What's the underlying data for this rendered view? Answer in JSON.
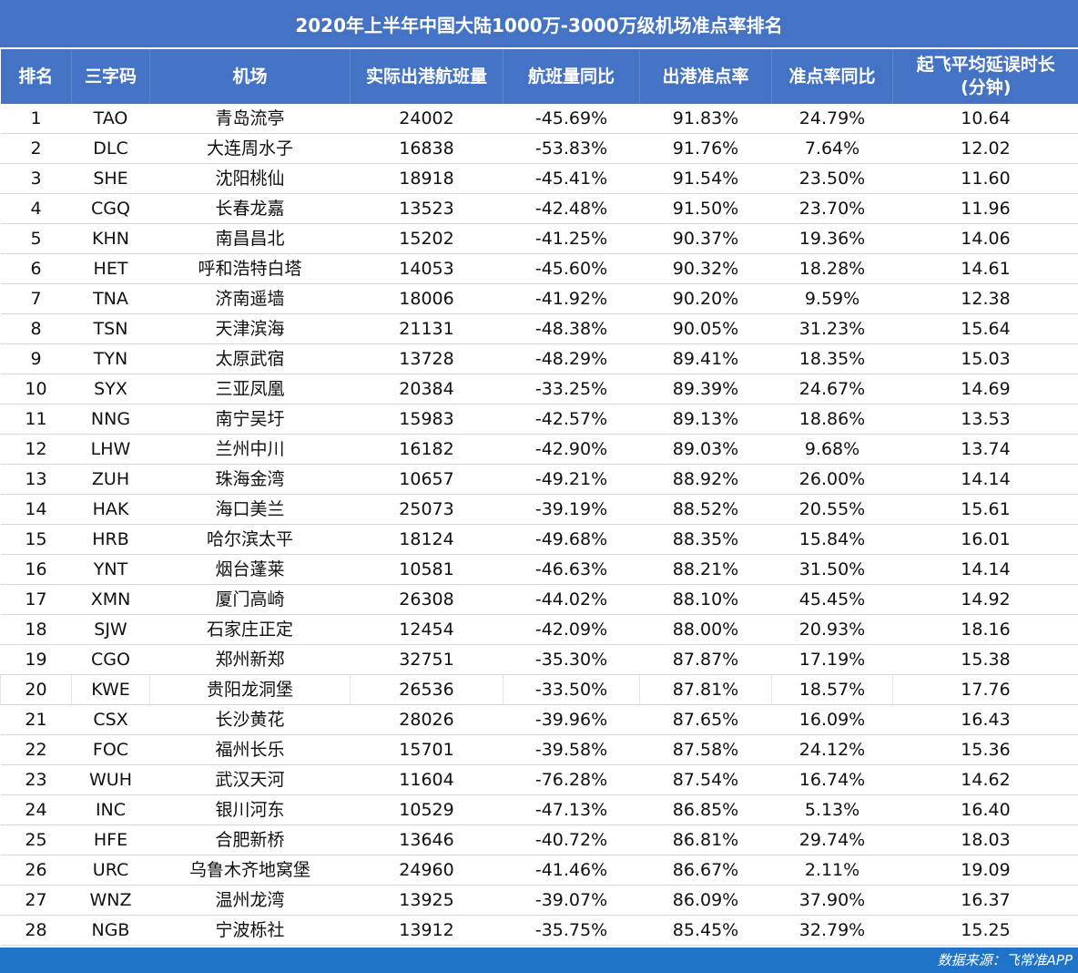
{
  "title": "2020年上半年中国大陆1000万-3000万级机场准点率排名",
  "headers": [
    "排名",
    "三字码",
    "机场",
    "实际出港航班量",
    "航班量同比",
    "出港准点率",
    "准点率同比",
    "起飞平均延误时长\n(分钟)"
  ],
  "rows": [
    [
      "1",
      "TAO",
      "青岛流亭",
      "24002",
      "-45.69%",
      "91.83%",
      "24.79%",
      "10.64"
    ],
    [
      "2",
      "DLC",
      "大连周水子",
      "16838",
      "-53.83%",
      "91.76%",
      "7.64%",
      "12.02"
    ],
    [
      "3",
      "SHE",
      "沈阳桃仙",
      "18918",
      "-45.41%",
      "91.54%",
      "23.50%",
      "11.60"
    ],
    [
      "4",
      "CGQ",
      "长春龙嘉",
      "13523",
      "-42.48%",
      "91.50%",
      "23.70%",
      "11.96"
    ],
    [
      "5",
      "KHN",
      "南昌昌北",
      "15202",
      "-41.25%",
      "90.37%",
      "19.36%",
      "14.06"
    ],
    [
      "6",
      "HET",
      "呼和浩特白塔",
      "14053",
      "-45.60%",
      "90.32%",
      "18.28%",
      "14.61"
    ],
    [
      "7",
      "TNA",
      "济南遥墙",
      "18006",
      "-41.92%",
      "90.20%",
      "9.59%",
      "12.38"
    ],
    [
      "8",
      "TSN",
      "天津滨海",
      "21131",
      "-48.38%",
      "90.05%",
      "31.23%",
      "15.64"
    ],
    [
      "9",
      "TYN",
      "太原武宿",
      "13728",
      "-48.29%",
      "89.41%",
      "18.35%",
      "15.03"
    ],
    [
      "10",
      "SYX",
      "三亚凤凰",
      "20384",
      "-33.25%",
      "89.39%",
      "24.67%",
      "14.69"
    ],
    [
      "11",
      "NNG",
      "南宁吴圩",
      "15983",
      "-42.57%",
      "89.13%",
      "18.86%",
      "13.53"
    ],
    [
      "12",
      "LHW",
      "兰州中川",
      "16182",
      "-42.90%",
      "89.03%",
      "9.68%",
      "13.74"
    ],
    [
      "13",
      "ZUH",
      "珠海金湾",
      "10657",
      "-49.21%",
      "88.92%",
      "26.00%",
      "14.14"
    ],
    [
      "14",
      "HAK",
      "海口美兰",
      "25073",
      "-39.19%",
      "88.52%",
      "20.55%",
      "15.61"
    ],
    [
      "15",
      "HRB",
      "哈尔滨太平",
      "18124",
      "-49.68%",
      "88.35%",
      "15.84%",
      "16.01"
    ],
    [
      "16",
      "YNT",
      "烟台蓬莱",
      "10581",
      "-46.63%",
      "88.21%",
      "31.50%",
      "14.14"
    ],
    [
      "17",
      "XMN",
      "厦门高崎",
      "26308",
      "-44.02%",
      "88.10%",
      "45.45%",
      "14.92"
    ],
    [
      "18",
      "SJW",
      "石家庄正定",
      "12454",
      "-42.09%",
      "88.00%",
      "20.93%",
      "18.16"
    ],
    [
      "19",
      "CGO",
      "郑州新郑",
      "32751",
      "-35.30%",
      "87.87%",
      "17.19%",
      "15.38"
    ],
    [
      "20",
      "KWE",
      "贵阳龙洞堡",
      "26536",
      "-33.50%",
      "87.81%",
      "18.57%",
      "17.76"
    ],
    [
      "21",
      "CSX",
      "长沙黄花",
      "28026",
      "-39.96%",
      "87.65%",
      "16.09%",
      "16.43"
    ],
    [
      "22",
      "FOC",
      "福州长乐",
      "15701",
      "-39.58%",
      "87.58%",
      "24.12%",
      "15.36"
    ],
    [
      "23",
      "WUH",
      "武汉天河",
      "11604",
      "-76.28%",
      "87.54%",
      "16.74%",
      "14.62"
    ],
    [
      "24",
      "INC",
      "银川河东",
      "10529",
      "-47.13%",
      "86.85%",
      "5.13%",
      "16.40"
    ],
    [
      "25",
      "HFE",
      "合肥新桥",
      "13646",
      "-40.72%",
      "86.81%",
      "29.74%",
      "18.03"
    ],
    [
      "26",
      "URC",
      "乌鲁木齐地窝堡",
      "24960",
      "-41.46%",
      "86.67%",
      "2.11%",
      "19.09"
    ],
    [
      "27",
      "WNZ",
      "温州龙湾",
      "13925",
      "-39.07%",
      "86.09%",
      "37.90%",
      "16.37"
    ],
    [
      "28",
      "NGB",
      "宁波栎社",
      "13912",
      "-35.75%",
      "85.45%",
      "32.79%",
      "15.25"
    ]
  ],
  "footer": "数据来源：飞常准APP",
  "colors": {
    "header_bg": "#4472c4",
    "footer_bg": "#1f73c8"
  }
}
